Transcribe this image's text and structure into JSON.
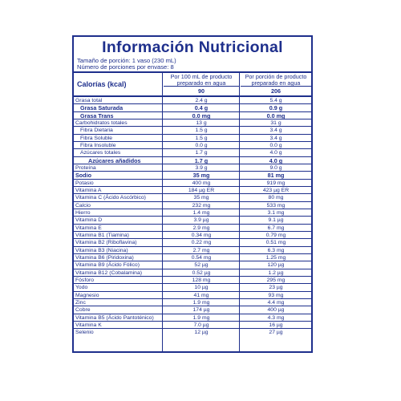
{
  "title": "Información Nutricional",
  "serving_size": "Tamaño de porción: 1 vaso (230 mL)",
  "servings": "Número de porciones por envase:  8",
  "calories_label": "Calorías (kcal)",
  "col1_header": "Por 100 mL de producto preparado en agua",
  "col2_header": "Por porción de producto preparado en agua",
  "calories_col1": "90",
  "calories_col2": "206",
  "rows": [
    {
      "label": "Grasa total",
      "v1": "2.4 g",
      "v2": "5.4 g",
      "indent": 0,
      "bold": false
    },
    {
      "label": "Grasa Saturada",
      "v1": "0.4 g",
      "v2": "0.9 g",
      "indent": 1,
      "bold": true
    },
    {
      "label": "Grasa Trans",
      "v1": "0.0 mg",
      "v2": "0.0 mg",
      "indent": 1,
      "bold": true
    },
    {
      "label": "Carbohidratos totales",
      "v1": "13 g",
      "v2": "31 g",
      "indent": 0,
      "bold": false
    },
    {
      "label": "Fibra Dietaria",
      "v1": "1.5 g",
      "v2": "3.4 g",
      "indent": 1,
      "bold": false
    },
    {
      "label": "Fibra Soluble",
      "v1": "1.5 g",
      "v2": "3.4 g",
      "indent": 1,
      "bold": false
    },
    {
      "label": "Fibra Insoluble",
      "v1": "0.0 g",
      "v2": "0.0 g",
      "indent": 1,
      "bold": false
    },
    {
      "label": "Azúcares totales",
      "v1": "1.7 g",
      "v2": "4.0 g",
      "indent": 1,
      "bold": false
    },
    {
      "label": "Azúcares añadidos",
      "v1": "1.7 g",
      "v2": "4.0 g",
      "indent": 2,
      "bold": true
    },
    {
      "label": "Proteína",
      "v1": "3.9 g",
      "v2": "9.0 g",
      "indent": 0,
      "bold": false
    },
    {
      "label": "Sodio",
      "v1": "35 mg",
      "v2": "81 mg",
      "indent": 0,
      "bold": true
    },
    {
      "label": "Potasio",
      "v1": "400 mg",
      "v2": "919 mg",
      "indent": 0,
      "bold": false
    },
    {
      "label": "Vitamina A",
      "v1": "184 µg ER",
      "v2": "423 µg ER",
      "indent": 0,
      "bold": false
    },
    {
      "label": "Vitamina C (Ácido Ascórbico)",
      "v1": "35 mg",
      "v2": "80 mg",
      "indent": 0,
      "bold": false
    },
    {
      "label": "Calcio",
      "v1": "232 mg",
      "v2": "533 mg",
      "indent": 0,
      "bold": false
    },
    {
      "label": "Hierro",
      "v1": "1.4 mg",
      "v2": "3.1 mg",
      "indent": 0,
      "bold": false
    },
    {
      "label": "Vitamina D",
      "v1": "3.9 µg",
      "v2": "9.1 µg",
      "indent": 0,
      "bold": false
    },
    {
      "label": "Vitamina E",
      "v1": "2.9 mg",
      "v2": "6.7 mg",
      "indent": 0,
      "bold": false
    },
    {
      "label": "Vitamina B1 (Tiamina)",
      "v1": "0.34 mg",
      "v2": "0.79 mg",
      "indent": 0,
      "bold": false
    },
    {
      "label": "Vitamina B2 (Riboflavina)",
      "v1": "0.22 mg",
      "v2": "0.51 mg",
      "indent": 0,
      "bold": false
    },
    {
      "label": "Vitamina B3 (Niacina)",
      "v1": "2.7 mg",
      "v2": "6.3 mg",
      "indent": 0,
      "bold": false
    },
    {
      "label": "Vitamina B6 (Piridoxina)",
      "v1": "0.54 mg",
      "v2": "1.25 mg",
      "indent": 0,
      "bold": false
    },
    {
      "label": "Vitamina B9 (Ácido Fólico)",
      "v1": "52 µg",
      "v2": "120 µg",
      "indent": 0,
      "bold": false
    },
    {
      "label": "Vitamina B12 (Cobalamina)",
      "v1": "0.52 µg",
      "v2": "1.2 µg",
      "indent": 0,
      "bold": false
    },
    {
      "label": "Fósforo",
      "v1": "128 mg",
      "v2": "295 mg",
      "indent": 0,
      "bold": false
    },
    {
      "label": "Yodo",
      "v1": "10 µg",
      "v2": "23 µg",
      "indent": 0,
      "bold": false
    },
    {
      "label": "Magnesio",
      "v1": "41 mg",
      "v2": "93 mg",
      "indent": 0,
      "bold": false
    },
    {
      "label": "Zinc",
      "v1": "1.9 mg",
      "v2": "4.4 mg",
      "indent": 0,
      "bold": false
    },
    {
      "label": "Cobre",
      "v1": "174 µg",
      "v2": "400 µg",
      "indent": 0,
      "bold": false
    },
    {
      "label": "Vitamina B5 (Ácido Pantoténico)",
      "v1": "1.9 mg",
      "v2": "4.3 mg",
      "indent": 0,
      "bold": false
    },
    {
      "label": "Vitamina K",
      "v1": "7.0 µg",
      "v2": "16 µg",
      "indent": 0,
      "bold": false
    },
    {
      "label": "Selenio",
      "v1": "12 µg",
      "v2": "27 µg",
      "indent": 0,
      "bold": false
    }
  ]
}
